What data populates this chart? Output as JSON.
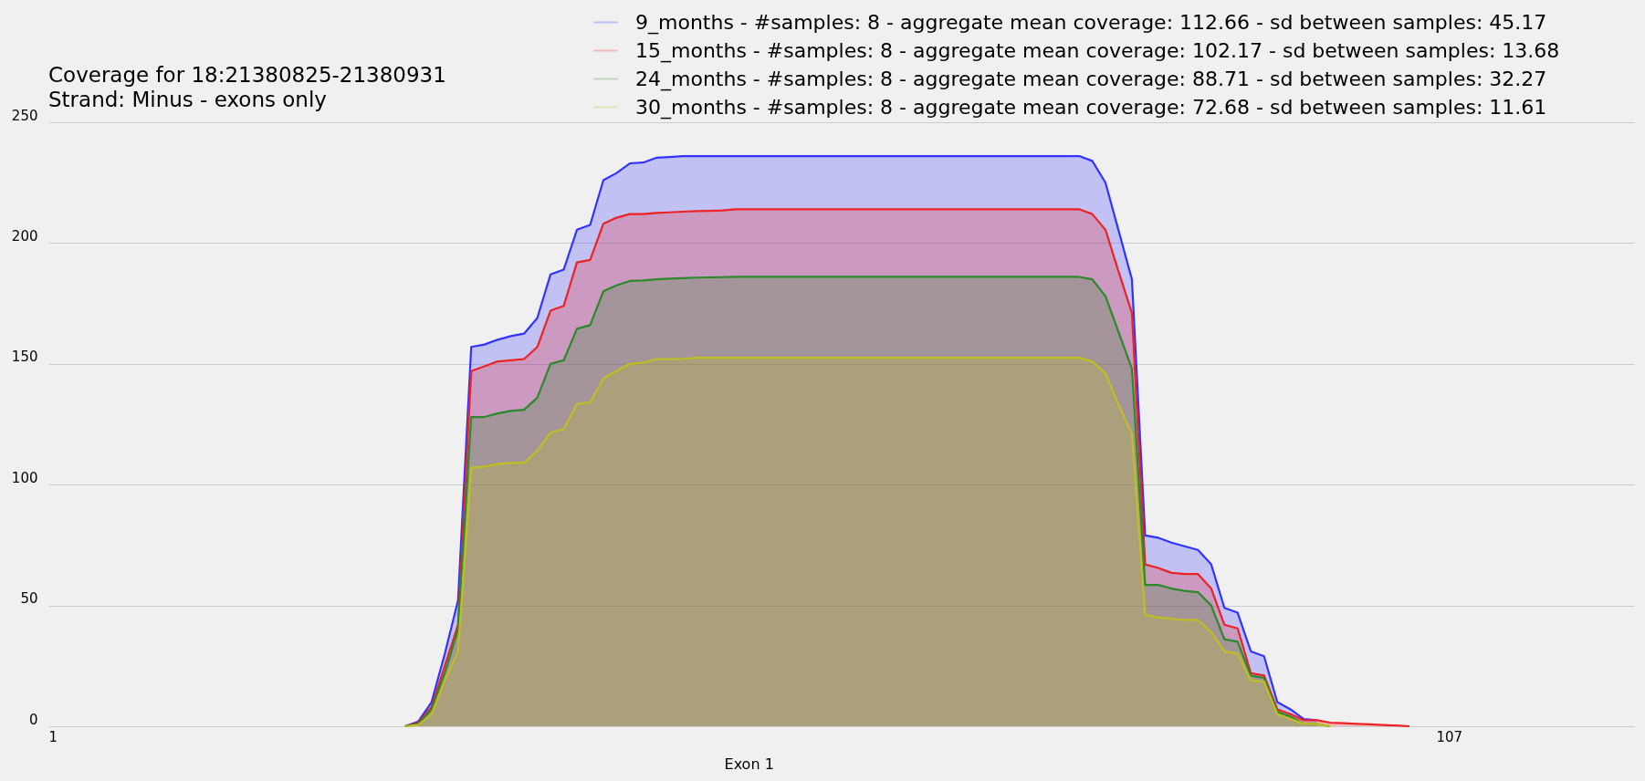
{
  "chart_data": {
    "type": "area",
    "title": [
      "Coverage for 18:21380825-21380931",
      "Strand: Minus - exons only"
    ],
    "xlabel": "Exon 1",
    "x": [
      28,
      29,
      30,
      31,
      32,
      33,
      34,
      35,
      36,
      37,
      38,
      39,
      40,
      41,
      42,
      43,
      44,
      45,
      46,
      47,
      48,
      49,
      50,
      51,
      52,
      53,
      54,
      55,
      56,
      57,
      58,
      59,
      60,
      61,
      62,
      63,
      64,
      65,
      66,
      67,
      68,
      69,
      70,
      71,
      72,
      73,
      74,
      75,
      76,
      77,
      78,
      79,
      80,
      81,
      82,
      83,
      84,
      85,
      86,
      87,
      88,
      89,
      90,
      91,
      92,
      93,
      94,
      95,
      96,
      97,
      98,
      99,
      100,
      101,
      102,
      103,
      104
    ],
    "series": [
      {
        "name": "9_months - #samples: 8 - aggregate mean coverage: 112.66 - sd between samples: 45.17",
        "color": "#3333ff",
        "values": [
          0,
          2,
          10,
          30,
          52,
          157,
          158,
          160,
          161.5,
          162.5,
          169,
          187,
          189,
          205.5,
          207.5,
          226,
          229,
          233,
          233.3,
          235.3,
          235.6,
          236,
          236,
          236,
          236,
          236,
          236,
          236,
          236,
          236,
          236,
          236,
          236,
          236,
          236,
          236,
          236,
          236,
          236,
          236,
          236,
          236,
          236,
          236,
          236,
          236,
          236,
          236,
          236,
          236,
          236,
          236,
          234,
          225,
          205,
          185,
          79,
          78,
          76,
          74.5,
          73,
          67,
          49,
          47,
          31,
          29,
          10,
          7,
          3,
          2.5,
          null,
          null,
          null,
          null,
          null,
          null,
          null
        ]
      },
      {
        "name": "15_months - #samples: 8 - aggregate mean coverage: 102.17 - sd between samples: 13.68",
        "color": "#ee2222",
        "values": [
          0,
          1.5,
          8,
          25,
          42,
          147,
          149,
          151,
          151.5,
          152,
          157,
          172,
          174,
          192,
          193,
          208,
          210.5,
          212,
          212,
          212.5,
          212.7,
          213,
          213.2,
          213.3,
          213.5,
          214,
          214,
          214,
          214,
          214,
          214,
          214,
          214,
          214,
          214,
          214,
          214,
          214,
          214,
          214,
          214,
          214,
          214,
          214,
          214,
          214,
          214,
          214,
          214,
          214,
          214,
          214,
          212,
          205.5,
          188,
          171,
          67,
          65.5,
          63.5,
          63,
          63,
          57,
          42,
          40.5,
          22,
          21,
          7,
          5,
          2.5,
          2.5,
          1.5,
          1.3,
          1,
          0.8,
          0.5,
          0.3,
          0
        ]
      },
      {
        "name": "24_months - #samples: 8 - aggregate mean coverage: 88.71 - sd between samples: 32.27",
        "color": "#2a8a2a",
        "values": [
          0,
          1,
          7,
          22,
          40,
          128,
          128,
          129.5,
          130.5,
          131,
          136,
          150,
          151.5,
          164.5,
          166,
          180,
          182.5,
          184.3,
          184.5,
          185,
          185.3,
          185.5,
          185.7,
          185.8,
          185.9,
          186,
          186,
          186,
          186,
          186,
          186,
          186,
          186,
          186,
          186,
          186,
          186,
          186,
          186,
          186,
          186,
          186,
          186,
          186,
          186,
          186,
          186,
          186,
          186,
          186,
          186,
          186,
          185,
          178,
          163,
          148,
          58.5,
          58.5,
          57,
          56,
          55.5,
          50,
          36,
          35,
          21,
          20,
          6,
          4,
          1,
          1,
          0,
          null,
          null,
          null,
          null,
          null,
          null
        ]
      },
      {
        "name": "30_months - #samples: 8 - aggregate mean coverage: 72.68 - sd between samples: 11.61",
        "color": "#bfbf1f",
        "values": [
          0,
          0.5,
          5,
          19,
          31,
          107,
          107.5,
          108.5,
          109,
          109,
          114,
          121.5,
          123,
          133.5,
          134,
          144,
          147,
          150,
          150.5,
          152,
          152,
          152,
          152.5,
          152.5,
          152.5,
          152.5,
          152.5,
          152.5,
          152.5,
          152.5,
          152.5,
          152.5,
          152.5,
          152.5,
          152.5,
          152.5,
          152.5,
          152.5,
          152.5,
          152.5,
          152.5,
          152.5,
          152.5,
          152.5,
          152.5,
          152.5,
          152.5,
          152.5,
          152.5,
          152.5,
          152.5,
          152.5,
          151,
          146,
          133,
          121,
          46,
          45,
          44.5,
          44,
          44,
          39,
          31,
          30,
          19,
          18.5,
          5,
          3,
          1,
          1,
          0,
          null,
          null,
          null,
          null,
          null,
          null
        ]
      }
    ],
    "xlim": [
      1,
      121
    ],
    "xticks": [
      1,
      107
    ],
    "ylim": [
      0,
      250
    ],
    "yticks": [
      0,
      50,
      100,
      150,
      200,
      250
    ],
    "grid": "y",
    "legend": "top right"
  }
}
